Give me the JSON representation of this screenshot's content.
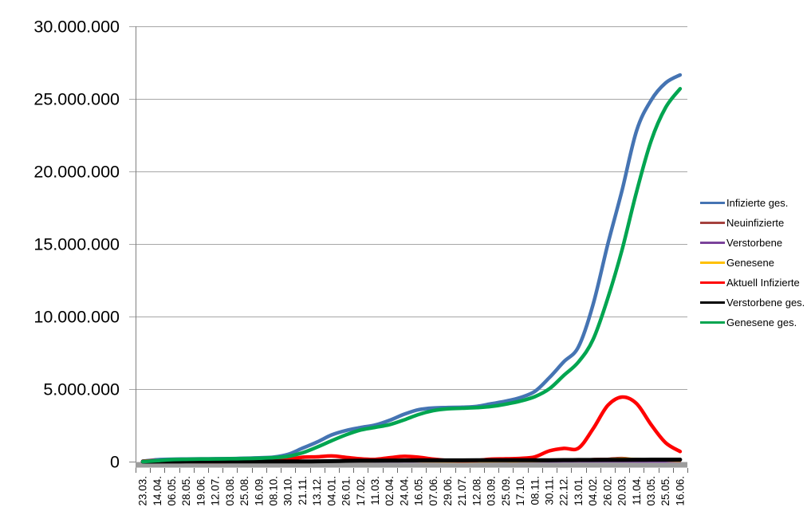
{
  "chart_data": {
    "type": "line",
    "title": "",
    "xlabel": "",
    "ylabel": "",
    "values_unit": "millions",
    "legend_position": "right",
    "grid": true,
    "categories": [
      "23.03.",
      "14.04.",
      "06.05.",
      "28.05.",
      "19.06.",
      "12.07.",
      "03.08.",
      "25.08.",
      "16.09.",
      "08.10.",
      "30.10.",
      "21.11.",
      "13.12.",
      "04.01.",
      "26.01.",
      "17.02.",
      "11.03.",
      "02.04.",
      "24.04.",
      "16.05.",
      "07.06.",
      "29.06.",
      "21.07.",
      "12.08.",
      "03.09.",
      "25.09.",
      "17.10.",
      "08.11.",
      "30.11.",
      "22.12.",
      "13.01.",
      "04.02.",
      "26.02.",
      "20.03.",
      "11.04.",
      "03.05.",
      "25.05.",
      "16.06."
    ],
    "y_axis": {
      "min": 0,
      "max": 30000000,
      "tick_interval": 5000000,
      "tick_labels": [
        "0",
        "5.000.000",
        "10.000.000",
        "15.000.000",
        "20.000.000",
        "25.000.000",
        "30.000.000"
      ]
    },
    "series": [
      {
        "name": "Infizierte ges.",
        "color": "#4574B3",
        "thickness": "thick",
        "values_millions": [
          0.03,
          0.13,
          0.165,
          0.18,
          0.19,
          0.2,
          0.21,
          0.235,
          0.265,
          0.31,
          0.5,
          0.93,
          1.35,
          1.84,
          2.15,
          2.35,
          2.52,
          2.85,
          3.27,
          3.58,
          3.7,
          3.73,
          3.75,
          3.81,
          3.99,
          4.17,
          4.42,
          4.84,
          5.79,
          6.89,
          7.91,
          10.8,
          14.9,
          18.7,
          22.8,
          24.9,
          26.1,
          26.65
        ]
      },
      {
        "name": "Neuinfizierte",
        "color": "#A5423E",
        "thickness": "thin",
        "values_millions": [
          0.004,
          0.003,
          0.001,
          0.0007,
          0.0005,
          0.0004,
          0.001,
          0.0015,
          0.002,
          0.004,
          0.015,
          0.022,
          0.028,
          0.018,
          0.011,
          0.008,
          0.012,
          0.021,
          0.021,
          0.009,
          0.004,
          0.0015,
          0.002,
          0.006,
          0.012,
          0.009,
          0.012,
          0.034,
          0.057,
          0.046,
          0.075,
          0.19,
          0.21,
          0.27,
          0.16,
          0.1,
          0.06,
          0.035
        ]
      },
      {
        "name": "Verstorbene",
        "color": "#7B439B",
        "thickness": "thin",
        "values_millions": [
          0.0002,
          0.001,
          0.0008,
          0.0004,
          0.0002,
          0.0001,
          0.0001,
          0.0001,
          0.0002,
          0.0003,
          0.0008,
          0.002,
          0.004,
          0.006,
          0.005,
          0.003,
          0.002,
          0.002,
          0.002,
          0.001,
          0.0005,
          0.0002,
          0.0001,
          0.0002,
          0.0004,
          0.0006,
          0.0008,
          0.001,
          0.002,
          0.003,
          0.003,
          0.003,
          0.003,
          0.003,
          0.002,
          0.002,
          0.001,
          0.0008
        ]
      },
      {
        "name": "Genesene",
        "color": "#FFC000",
        "thickness": "thin",
        "values_millions": [
          0.002,
          0.004,
          0.003,
          0.001,
          0.0006,
          0.0004,
          0.0005,
          0.001,
          0.0015,
          0.002,
          0.006,
          0.017,
          0.024,
          0.022,
          0.015,
          0.009,
          0.009,
          0.015,
          0.021,
          0.014,
          0.006,
          0.002,
          0.001,
          0.003,
          0.008,
          0.009,
          0.009,
          0.02,
          0.042,
          0.05,
          0.06,
          0.12,
          0.18,
          0.22,
          0.2,
          0.13,
          0.07,
          0.04
        ]
      },
      {
        "name": "Aktuell Infizierte",
        "color": "#FF0000",
        "thickness": "thick",
        "values_millions": [
          0.025,
          0.066,
          0.025,
          0.012,
          0.008,
          0.006,
          0.009,
          0.018,
          0.023,
          0.034,
          0.135,
          0.3,
          0.33,
          0.39,
          0.29,
          0.19,
          0.155,
          0.27,
          0.36,
          0.3,
          0.17,
          0.08,
          0.06,
          0.08,
          0.17,
          0.19,
          0.22,
          0.33,
          0.74,
          0.91,
          0.93,
          2.25,
          3.85,
          4.45,
          4.0,
          2.55,
          1.3,
          0.7
        ]
      },
      {
        "name": "Verstorbene ges.",
        "color": "#000000",
        "thickness": "thick",
        "values_millions": [
          0.0004,
          0.003,
          0.007,
          0.0085,
          0.0089,
          0.0091,
          0.0092,
          0.0093,
          0.0094,
          0.0096,
          0.01,
          0.014,
          0.022,
          0.035,
          0.053,
          0.066,
          0.072,
          0.077,
          0.081,
          0.086,
          0.089,
          0.09,
          0.0905,
          0.0915,
          0.092,
          0.093,
          0.0945,
          0.0965,
          0.1,
          0.108,
          0.114,
          0.118,
          0.122,
          0.127,
          0.132,
          0.135,
          0.138,
          0.14
        ]
      },
      {
        "name": "Genesene ges.",
        "color": "#00A550",
        "thickness": "thick",
        "values_millions": [
          0.003,
          0.065,
          0.14,
          0.162,
          0.176,
          0.186,
          0.196,
          0.212,
          0.238,
          0.272,
          0.36,
          0.61,
          1.0,
          1.44,
          1.85,
          2.18,
          2.36,
          2.55,
          2.88,
          3.25,
          3.51,
          3.64,
          3.68,
          3.72,
          3.8,
          3.96,
          4.17,
          4.48,
          5.02,
          5.95,
          6.87,
          8.4,
          11.2,
          14.6,
          18.6,
          22.1,
          24.4,
          25.7
        ]
      }
    ],
    "style_colors": {
      "gridline": "#A6A6A6",
      "axis_line": "#808080",
      "axis_band": "#9D9D9D",
      "tick": "#666666",
      "text": "#000000",
      "background": "#FFFFFF"
    }
  }
}
